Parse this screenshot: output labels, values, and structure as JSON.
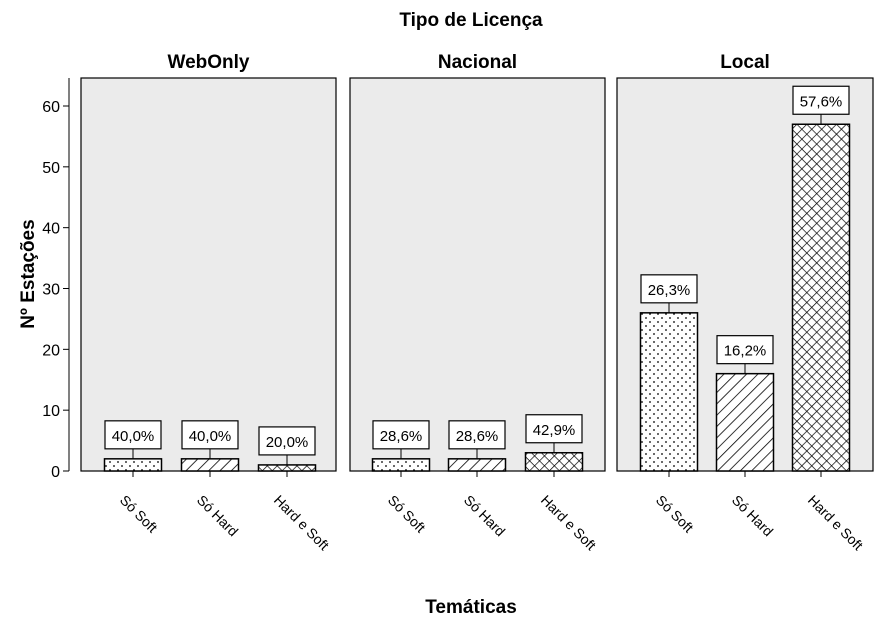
{
  "chart_data": {
    "type": "bar",
    "title": "Tipo de Licença",
    "xlabel": "Temáticas",
    "ylabel": "Nº Estações",
    "ylim": [
      0,
      60
    ],
    "yticks": [
      "0",
      "10",
      "20",
      "30",
      "40",
      "50",
      "60"
    ],
    "categories": [
      "Só Soft",
      "Só Hard",
      "Hard e Soft"
    ],
    "grid": false,
    "panel_background": "#ebebeb",
    "bar_fill": "#ffffff",
    "bar_patterns": [
      "dotted",
      "diagonal-hatch",
      "cross-hatch"
    ],
    "panels": [
      {
        "name": "WebOnly",
        "values": [
          2,
          2,
          1
        ],
        "labels": [
          "40,0%",
          "40,0%",
          "20,0%"
        ]
      },
      {
        "name": "Nacional",
        "values": [
          2,
          2,
          3
        ],
        "labels": [
          "28,6%",
          "28,6%",
          "42,9%"
        ]
      },
      {
        "name": "Local",
        "values": [
          26,
          16,
          57
        ],
        "labels": [
          "26,3%",
          "16,2%",
          "57,6%"
        ]
      }
    ]
  }
}
